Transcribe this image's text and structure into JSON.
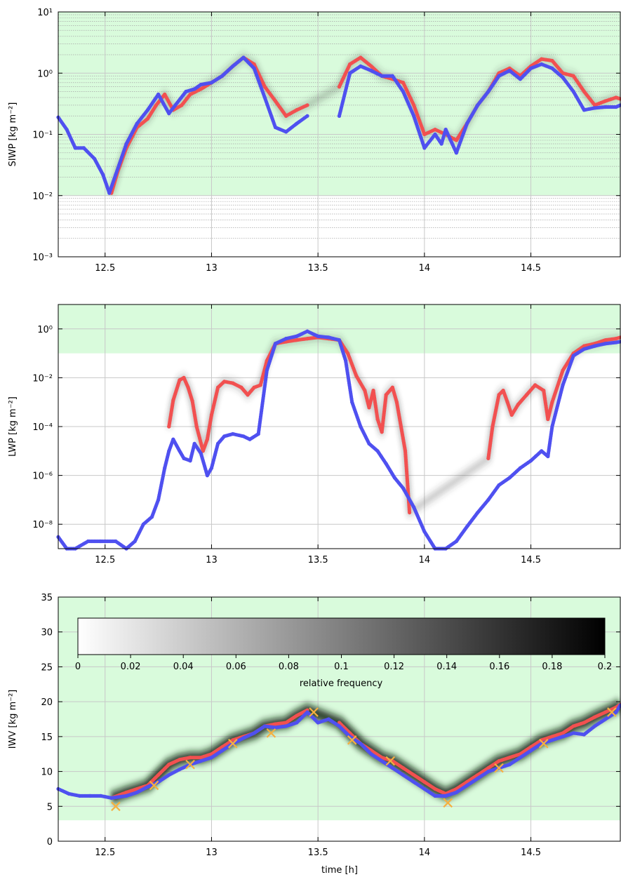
{
  "figure": {
    "xlabel": "time [h]",
    "colorbar": {
      "label": "relative frequency",
      "ticks": [
        "0",
        "0.02",
        "0.04",
        "0.06",
        "0.08",
        "0.1",
        "0.12",
        "0.14",
        "0.16",
        "0.18",
        "0.2"
      ],
      "range": [
        0,
        0.2
      ],
      "colormap": [
        "#ffffff",
        "#000000"
      ]
    },
    "colors": {
      "red_series": "#f25050",
      "blue_series": "#4f50f0",
      "marker_x": "#f5b040",
      "valid_range_fill": "#d9fbdc",
      "gridline": "#c8c8c8"
    }
  },
  "chart_data": [
    {
      "type": "scatter",
      "ylabel": "SIWP [kg m⁻²]",
      "yscale": "log",
      "ylim": [
        0.001,
        10
      ],
      "xlim": [
        12.28,
        14.92
      ],
      "xticks": [
        "12.5",
        "13",
        "13.5",
        "14",
        "14.5"
      ],
      "yticks": [
        "10⁻³",
        "10⁻²",
        "10⁻¹",
        "10⁰",
        "10¹"
      ],
      "shaded_range": [
        0.01,
        10
      ],
      "series": [
        {
          "color": "red",
          "x": [
            12.53,
            12.56,
            12.6,
            12.65,
            12.7,
            12.74,
            12.78,
            12.82,
            12.86,
            12.9,
            12.95,
            13.0,
            13.05,
            13.1,
            13.15,
            13.2,
            13.25,
            13.3,
            13.35,
            13.4,
            13.45,
            13.6,
            13.65,
            13.7,
            13.75,
            13.8,
            13.85,
            13.9,
            13.95,
            14.0,
            14.05,
            14.1,
            14.15,
            14.2,
            14.25,
            14.3,
            14.35,
            14.4,
            14.45,
            14.5,
            14.55,
            14.6,
            14.65,
            14.7,
            14.75,
            14.8,
            14.85,
            14.9,
            14.92
          ],
          "y": [
            0.011,
            0.025,
            0.06,
            0.13,
            0.18,
            0.3,
            0.45,
            0.25,
            0.3,
            0.45,
            0.55,
            0.7,
            0.9,
            1.3,
            1.8,
            1.4,
            0.6,
            0.35,
            0.2,
            0.25,
            0.3,
            0.6,
            1.4,
            1.8,
            1.3,
            0.9,
            0.8,
            0.7,
            0.3,
            0.1,
            0.12,
            0.1,
            0.08,
            0.15,
            0.3,
            0.5,
            1.0,
            1.2,
            0.9,
            1.3,
            1.7,
            1.6,
            1.0,
            0.9,
            0.5,
            0.3,
            0.35,
            0.4,
            0.38
          ]
        },
        {
          "color": "blue",
          "x": [
            12.28,
            12.32,
            12.36,
            12.4,
            12.45,
            12.49,
            12.52,
            12.55,
            12.6,
            12.65,
            12.7,
            12.75,
            12.8,
            12.83,
            12.88,
            12.92,
            12.95,
            13.0,
            13.05,
            13.1,
            13.15,
            13.2,
            13.25,
            13.3,
            13.35,
            13.4,
            13.45,
            13.6,
            13.65,
            13.7,
            13.75,
            13.8,
            13.85,
            13.9,
            13.95,
            14.0,
            14.05,
            14.08,
            14.1,
            14.15,
            14.2,
            14.25,
            14.3,
            14.35,
            14.4,
            14.45,
            14.5,
            14.55,
            14.6,
            14.65,
            14.7,
            14.75,
            14.8,
            14.85,
            14.9,
            14.92
          ],
          "y": [
            0.19,
            0.12,
            0.06,
            0.06,
            0.04,
            0.022,
            0.011,
            0.022,
            0.07,
            0.15,
            0.25,
            0.45,
            0.22,
            0.3,
            0.5,
            0.55,
            0.65,
            0.7,
            0.9,
            1.3,
            1.8,
            1.2,
            0.4,
            0.13,
            0.11,
            0.15,
            0.2,
            0.2,
            1.0,
            1.3,
            1.1,
            0.9,
            0.9,
            0.5,
            0.2,
            0.06,
            0.1,
            0.07,
            0.12,
            0.05,
            0.15,
            0.3,
            0.5,
            0.9,
            1.1,
            0.8,
            1.2,
            1.4,
            1.2,
            0.85,
            0.5,
            0.25,
            0.27,
            0.28,
            0.28,
            0.3
          ]
        }
      ]
    },
    {
      "type": "scatter",
      "ylabel": "LWP [kg m⁻²]",
      "yscale": "log",
      "ylim": [
        1e-09,
        10
      ],
      "xlim": [
        12.28,
        14.92
      ],
      "xticks": [
        "12.5",
        "13",
        "13.5",
        "14",
        "14.5"
      ],
      "yticks": [
        "10⁻⁸",
        "10⁻⁶",
        "10⁻⁴",
        "10⁻²",
        "10⁰"
      ],
      "shaded_range": [
        0.1,
        10
      ],
      "series": [
        {
          "color": "red",
          "x": [
            12.8,
            12.82,
            12.85,
            12.87,
            12.89,
            12.91,
            12.93,
            12.96,
            12.98,
            13.0,
            13.03,
            13.06,
            13.1,
            13.14,
            13.17,
            13.2,
            13.23,
            13.26,
            13.3,
            13.35,
            13.4,
            13.45,
            13.5,
            13.55,
            13.6,
            13.64,
            13.68,
            13.72,
            13.74,
            13.76,
            13.78,
            13.8,
            13.82,
            13.85,
            13.87,
            13.89,
            13.91,
            13.93,
            14.3,
            14.32,
            14.35,
            14.37,
            14.39,
            14.41,
            14.44,
            14.48,
            14.52,
            14.56,
            14.58,
            14.6,
            14.65,
            14.7,
            14.75,
            14.8,
            14.85,
            14.9,
            14.92
          ],
          "y": [
            0.0001,
            0.0012,
            0.008,
            0.01,
            0.004,
            0.0011,
            0.0001,
            1e-05,
            3e-05,
            0.0003,
            0.004,
            0.007,
            0.006,
            0.004,
            0.002,
            0.004,
            0.005,
            0.05,
            0.25,
            0.3,
            0.35,
            0.4,
            0.45,
            0.4,
            0.35,
            0.1,
            0.012,
            0.003,
            0.0006,
            0.003,
            0.0002,
            6e-05,
            0.002,
            0.004,
            0.001,
            0.0001,
            1e-05,
            3e-08,
            5e-06,
            0.0001,
            0.002,
            0.003,
            0.001,
            0.0003,
            0.0008,
            0.002,
            0.005,
            0.003,
            0.0002,
            0.001,
            0.02,
            0.1,
            0.2,
            0.25,
            0.35,
            0.4,
            0.45
          ]
        },
        {
          "color": "blue",
          "x": [
            12.28,
            12.32,
            12.36,
            12.42,
            12.48,
            12.55,
            12.6,
            12.64,
            12.68,
            12.72,
            12.75,
            12.78,
            12.8,
            12.82,
            12.85,
            12.87,
            12.9,
            12.92,
            12.95,
            12.98,
            13.0,
            13.03,
            13.06,
            13.1,
            13.15,
            13.18,
            13.22,
            13.26,
            13.3,
            13.35,
            13.4,
            13.45,
            13.5,
            13.55,
            13.6,
            13.63,
            13.66,
            13.7,
            13.74,
            13.78,
            13.82,
            13.86,
            13.9,
            13.95,
            14.0,
            14.05,
            14.1,
            14.15,
            14.2,
            14.25,
            14.3,
            14.35,
            14.4,
            14.45,
            14.5,
            14.55,
            14.58,
            14.6,
            14.65,
            14.7,
            14.75,
            14.8,
            14.85,
            14.9,
            14.92
          ],
          "y": [
            3e-09,
            1e-09,
            1e-09,
            2e-09,
            2e-09,
            2e-09,
            1e-09,
            2e-09,
            1e-08,
            2e-08,
            1e-07,
            2e-06,
            1e-05,
            3e-05,
            1e-05,
            5e-06,
            4e-06,
            2e-05,
            8e-06,
            1e-06,
            2e-06,
            2e-05,
            4e-05,
            5e-05,
            4e-05,
            3e-05,
            5e-05,
            0.02,
            0.25,
            0.4,
            0.5,
            0.8,
            0.5,
            0.45,
            0.35,
            0.05,
            0.001,
            0.0001,
            2e-05,
            1e-05,
            3e-06,
            8e-07,
            3e-07,
            5e-08,
            5e-09,
            1e-09,
            1e-09,
            2e-09,
            8e-09,
            3e-08,
            1e-07,
            4e-07,
            8e-07,
            2e-06,
            4e-06,
            1e-05,
            6e-06,
            0.0001,
            0.005,
            0.08,
            0.15,
            0.2,
            0.25,
            0.28,
            0.3
          ]
        }
      ]
    },
    {
      "type": "scatter",
      "ylabel": "IWV [kg m⁻²]",
      "yscale": "linear",
      "ylim": [
        0,
        35
      ],
      "xlim": [
        12.28,
        14.92
      ],
      "xticks": [
        "12.5",
        "13",
        "13.5",
        "14",
        "14.5"
      ],
      "yticks": [
        "0",
        "5",
        "10",
        "15",
        "20",
        "25",
        "30",
        "35"
      ],
      "shaded_range": [
        3,
        35
      ],
      "series": [
        {
          "color": "red",
          "x": [
            12.53,
            12.6,
            12.65,
            12.7,
            12.75,
            12.8,
            12.85,
            12.9,
            12.95,
            13.0,
            13.05,
            13.1,
            13.15,
            13.2,
            13.25,
            13.3,
            13.35,
            13.4,
            13.45,
            13.6,
            13.65,
            13.7,
            13.75,
            13.8,
            13.85,
            13.9,
            13.95,
            14.0,
            14.05,
            14.1,
            14.15,
            14.2,
            14.25,
            14.3,
            14.35,
            14.4,
            14.45,
            14.5,
            14.55,
            14.6,
            14.65,
            14.7,
            14.75,
            14.8,
            14.85,
            14.9,
            14.92
          ],
          "y": [
            6.2,
            7.0,
            7.5,
            8.0,
            9.5,
            11.0,
            11.7,
            12.0,
            12.0,
            12.5,
            13.5,
            14.5,
            15.0,
            15.5,
            16.5,
            16.8,
            17.0,
            18.0,
            18.8,
            17.0,
            15.5,
            14.0,
            13.0,
            12.0,
            11.5,
            10.5,
            9.5,
            8.5,
            7.5,
            6.8,
            7.5,
            8.5,
            9.5,
            10.5,
            11.5,
            12.0,
            12.5,
            13.5,
            14.5,
            15.0,
            15.5,
            16.5,
            17.0,
            17.8,
            18.5,
            19.2,
            19.6
          ]
        },
        {
          "color": "blue",
          "x": [
            12.28,
            12.33,
            12.38,
            12.43,
            12.48,
            12.53,
            12.6,
            12.65,
            12.7,
            12.75,
            12.8,
            12.85,
            12.9,
            12.95,
            13.0,
            13.05,
            13.1,
            13.15,
            13.2,
            13.25,
            13.3,
            13.35,
            13.4,
            13.45,
            13.5,
            13.55,
            13.6,
            13.65,
            13.7,
            13.75,
            13.8,
            13.85,
            13.9,
            13.95,
            14.0,
            14.05,
            14.1,
            14.15,
            14.2,
            14.25,
            14.3,
            14.35,
            14.4,
            14.45,
            14.5,
            14.55,
            14.6,
            14.65,
            14.7,
            14.75,
            14.8,
            14.85,
            14.9,
            14.92
          ],
          "y": [
            7.5,
            6.8,
            6.5,
            6.5,
            6.5,
            6.2,
            6.5,
            7.0,
            7.8,
            8.5,
            9.5,
            10.3,
            11.0,
            11.5,
            12.0,
            13.0,
            14.0,
            14.8,
            15.5,
            16.5,
            16.3,
            16.5,
            17.0,
            18.5,
            17.0,
            17.5,
            16.5,
            15.0,
            14.0,
            12.5,
            11.5,
            10.5,
            9.5,
            8.5,
            7.5,
            6.5,
            6.5,
            7.0,
            8.0,
            9.0,
            10.0,
            10.5,
            11.0,
            12.0,
            13.0,
            14.0,
            14.5,
            15.0,
            15.5,
            15.3,
            16.5,
            17.5,
            18.5,
            19.5
          ]
        },
        {
          "color": "marker_x",
          "x": [
            12.55,
            12.73,
            12.9,
            13.1,
            13.28,
            13.48,
            13.66,
            13.84,
            14.11,
            14.35,
            14.56,
            14.88
          ],
          "y": [
            5.0,
            8.0,
            11.0,
            14.0,
            15.5,
            18.5,
            14.5,
            11.5,
            5.5,
            10.5,
            14.0,
            18.5
          ]
        }
      ]
    }
  ]
}
